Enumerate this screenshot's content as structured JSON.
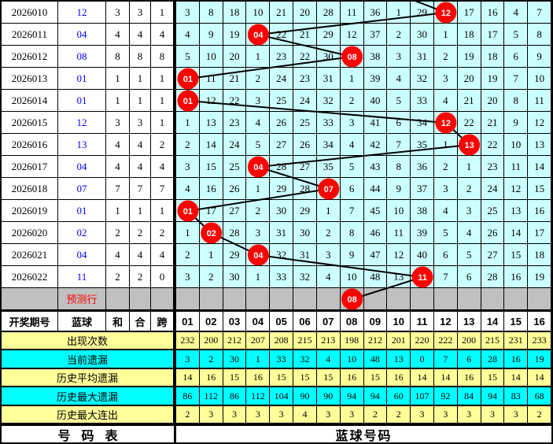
{
  "colors": {
    "grid_cell": "#CCFFFF",
    "prediction_row": "#C0C0C0",
    "stat_yellow": "#FFFF99",
    "stat_cyan": "#00FFFF",
    "blue_text": "#0000FF",
    "red": "#FF0000",
    "line": "#000000"
  },
  "left_table": {
    "columns": [
      "开奖期号",
      "蓝球",
      "和",
      "合",
      "跨"
    ],
    "rows": [
      {
        "period": "2026010",
        "blue": "12",
        "vals": [
          "3",
          "3",
          "1"
        ]
      },
      {
        "period": "2026011",
        "blue": "04",
        "vals": [
          "4",
          "4",
          "4"
        ]
      },
      {
        "period": "2026012",
        "blue": "08",
        "vals": [
          "8",
          "8",
          "8"
        ]
      },
      {
        "period": "2026013",
        "blue": "01",
        "vals": [
          "1",
          "1",
          "1"
        ]
      },
      {
        "period": "2026014",
        "blue": "01",
        "vals": [
          "1",
          "1",
          "1"
        ]
      },
      {
        "period": "2026015",
        "blue": "12",
        "vals": [
          "3",
          "3",
          "1"
        ]
      },
      {
        "period": "2026016",
        "blue": "13",
        "vals": [
          "4",
          "4",
          "2"
        ]
      },
      {
        "period": "2026017",
        "blue": "04",
        "vals": [
          "4",
          "4",
          "4"
        ]
      },
      {
        "period": "2026018",
        "blue": "07",
        "vals": [
          "7",
          "7",
          "7"
        ]
      },
      {
        "period": "2026019",
        "blue": "01",
        "vals": [
          "1",
          "1",
          "1"
        ]
      },
      {
        "period": "2026020",
        "blue": "02",
        "vals": [
          "2",
          "2",
          "2"
        ]
      },
      {
        "period": "2026021",
        "blue": "04",
        "vals": [
          "4",
          "4",
          "4"
        ]
      },
      {
        "period": "2026022",
        "blue": "11",
        "vals": [
          "2",
          "2",
          "0"
        ]
      }
    ],
    "prediction_label": "预测行"
  },
  "number_grid": {
    "column_headers": [
      "01",
      "02",
      "03",
      "04",
      "05",
      "06",
      "07",
      "08",
      "09",
      "10",
      "11",
      "12",
      "13",
      "14",
      "15",
      "16"
    ],
    "rows": [
      {
        "cells": [
          "3",
          "8",
          "18",
          "10",
          "21",
          "20",
          "28",
          "11",
          "36",
          "1",
          "29",
          "12",
          "17",
          "16",
          "4",
          "7"
        ],
        "circle_col": 12,
        "circle_label": "12"
      },
      {
        "cells": [
          "4",
          "9",
          "19",
          "04",
          "22",
          "21",
          "29",
          "12",
          "37",
          "2",
          "30",
          "1",
          "18",
          "17",
          "5",
          "8"
        ],
        "circle_col": 4,
        "circle_label": "04"
      },
      {
        "cells": [
          "5",
          "10",
          "20",
          "1",
          "23",
          "22",
          "30",
          "08",
          "38",
          "3",
          "31",
          "2",
          "19",
          "18",
          "6",
          "9"
        ],
        "circle_col": 8,
        "circle_label": "08"
      },
      {
        "cells": [
          "01",
          "11",
          "21",
          "2",
          "24",
          "23",
          "31",
          "1",
          "39",
          "4",
          "32",
          "3",
          "20",
          "19",
          "7",
          "10"
        ],
        "circle_col": 1,
        "circle_label": "01"
      },
      {
        "cells": [
          "01",
          "12",
          "22",
          "3",
          "25",
          "24",
          "32",
          "2",
          "40",
          "5",
          "33",
          "4",
          "21",
          "20",
          "8",
          "11"
        ],
        "circle_col": 1,
        "circle_label": "01"
      },
      {
        "cells": [
          "1",
          "13",
          "23",
          "4",
          "26",
          "25",
          "33",
          "3",
          "41",
          "6",
          "34",
          "12",
          "22",
          "21",
          "9",
          "12"
        ],
        "circle_col": 12,
        "circle_label": "12"
      },
      {
        "cells": [
          "2",
          "14",
          "24",
          "5",
          "27",
          "26",
          "34",
          "4",
          "42",
          "7",
          "35",
          "1",
          "13",
          "22",
          "10",
          "13"
        ],
        "circle_col": 13,
        "circle_label": "13"
      },
      {
        "cells": [
          "3",
          "15",
          "25",
          "04",
          "28",
          "27",
          "35",
          "5",
          "43",
          "8",
          "36",
          "2",
          "1",
          "23",
          "11",
          "14"
        ],
        "circle_col": 4,
        "circle_label": "04"
      },
      {
        "cells": [
          "4",
          "16",
          "26",
          "1",
          "29",
          "28",
          "07",
          "6",
          "44",
          "9",
          "37",
          "3",
          "2",
          "24",
          "12",
          "15"
        ],
        "circle_col": 7,
        "circle_label": "07"
      },
      {
        "cells": [
          "01",
          "17",
          "27",
          "2",
          "30",
          "29",
          "1",
          "7",
          "45",
          "10",
          "38",
          "4",
          "3",
          "25",
          "13",
          "16"
        ],
        "circle_col": 1,
        "circle_label": "01"
      },
      {
        "cells": [
          "1",
          "02",
          "28",
          "3",
          "31",
          "30",
          "2",
          "8",
          "46",
          "11",
          "39",
          "5",
          "4",
          "26",
          "14",
          "17"
        ],
        "circle_col": 2,
        "circle_label": "02"
      },
      {
        "cells": [
          "2",
          "1",
          "29",
          "04",
          "32",
          "31",
          "3",
          "9",
          "47",
          "12",
          "40",
          "6",
          "5",
          "27",
          "15",
          "18"
        ],
        "circle_col": 4,
        "circle_label": "04"
      },
      {
        "cells": [
          "3",
          "2",
          "30",
          "1",
          "33",
          "32",
          "4",
          "10",
          "48",
          "13",
          "11",
          "7",
          "6",
          "28",
          "16",
          "19"
        ],
        "circle_col": 11,
        "circle_label": "11"
      }
    ],
    "prediction": {
      "circle_col": 8,
      "circle_label": "08"
    }
  },
  "stats": {
    "rows": [
      {
        "label": "出现次数",
        "bg": "yellow",
        "values": [
          "232",
          "200",
          "212",
          "207",
          "208",
          "215",
          "213",
          "198",
          "212",
          "201",
          "220",
          "222",
          "200",
          "215",
          "231",
          "233"
        ]
      },
      {
        "label": "当前遗漏",
        "bg": "cyan",
        "values": [
          "3",
          "2",
          "30",
          "1",
          "33",
          "32",
          "4",
          "10",
          "48",
          "13",
          "0",
          "7",
          "6",
          "28",
          "16",
          "19"
        ]
      },
      {
        "label": "历史平均遗漏",
        "bg": "yellow",
        "values": [
          "14",
          "16",
          "15",
          "16",
          "15",
          "15",
          "15",
          "16",
          "15",
          "16",
          "14",
          "14",
          "16",
          "15",
          "14",
          "14"
        ]
      },
      {
        "label": "历史最大遗漏",
        "bg": "cyan",
        "values": [
          "86",
          "112",
          "86",
          "112",
          "104",
          "90",
          "90",
          "94",
          "94",
          "60",
          "107",
          "92",
          "84",
          "94",
          "83",
          "68"
        ]
      },
      {
        "label": "历史最大连出",
        "bg": "yellow",
        "values": [
          "2",
          "3",
          "3",
          "3",
          "3",
          "4",
          "3",
          "3",
          "2",
          "2",
          "3",
          "3",
          "3",
          "3",
          "3",
          "2"
        ]
      }
    ]
  },
  "footer": {
    "left": "号码表",
    "right": "蓝球号码"
  }
}
